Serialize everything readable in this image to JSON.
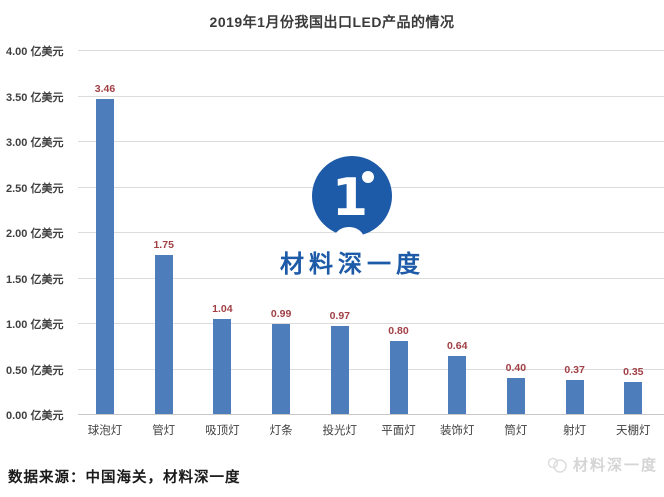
{
  "title": "2019年1月份我国出口LED产品的情况",
  "watermark": {
    "brand": "材料深一度",
    "logo_glyph": "1",
    "logo_color": "#1d5aa7"
  },
  "footer": {
    "source": "数据来源：中国海关，材料深一度"
  },
  "corner_watermark": {
    "brand": "材料深一度"
  },
  "chart_data": {
    "type": "bar",
    "title": "2019年1月份我国出口LED产品的情况",
    "categories": [
      "球泡灯",
      "管灯",
      "吸顶灯",
      "灯条",
      "投光灯",
      "平面灯",
      "装饰灯",
      "筒灯",
      "射灯",
      "天棚灯"
    ],
    "values": [
      3.46,
      1.75,
      1.04,
      0.99,
      0.97,
      0.8,
      0.64,
      0.4,
      0.37,
      0.35
    ],
    "unit": "亿美元",
    "ylabel": "亿美元",
    "ylim": [
      0,
      4.0
    ],
    "ytick_step": 0.5,
    "yticks": [
      "0.00",
      "0.50",
      "1.00",
      "1.50",
      "2.00",
      "2.50",
      "3.00",
      "3.50",
      "4.00"
    ],
    "grid": true,
    "legend": "none",
    "bar_color": "#4d7ebb",
    "value_label_color": "#a04045",
    "gridline_color": "#dcdcdc"
  }
}
